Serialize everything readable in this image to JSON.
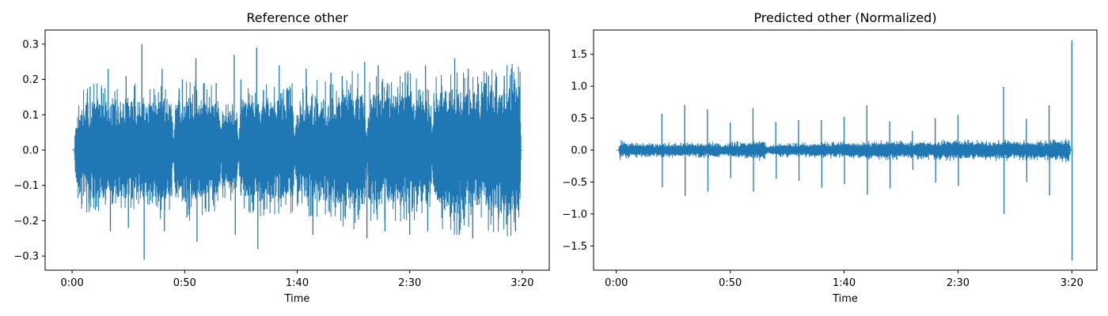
{
  "chart_data": [
    {
      "type": "line",
      "title": "Reference other",
      "xlabel": "Time",
      "ylabel": "",
      "x_unit": "seconds",
      "xlim": [
        -12,
        212
      ],
      "ylim": [
        -0.34,
        0.34
      ],
      "x_ticks": [
        {
          "value": 0,
          "label": "0:00"
        },
        {
          "value": 50,
          "label": "0:50"
        },
        {
          "value": 100,
          "label": "1:40"
        },
        {
          "value": 150,
          "label": "2:30"
        },
        {
          "value": 200,
          "label": "3:20"
        }
      ],
      "y_ticks": [
        {
          "value": 0.3,
          "label": "0.3"
        },
        {
          "value": 0.2,
          "label": "0.2"
        },
        {
          "value": 0.1,
          "label": "0.1"
        },
        {
          "value": 0.0,
          "label": "0.0"
        },
        {
          "value": -0.1,
          "label": "−0.1"
        },
        {
          "value": -0.2,
          "label": "−0.2"
        },
        {
          "value": -0.3,
          "label": "−0.3"
        }
      ],
      "duration": 200,
      "color": "#1f77b4",
      "envelope": {
        "time": [
          0,
          1,
          1.5,
          5,
          10,
          15,
          18,
          20,
          25,
          30,
          35,
          40,
          44,
          45,
          46,
          50,
          55,
          60,
          65,
          66,
          67,
          68,
          70,
          73,
          74,
          75,
          80,
          85,
          90,
          95,
          98,
          99,
          100,
          105,
          110,
          115,
          120,
          125,
          130,
          131,
          132,
          135,
          140,
          145,
          150,
          155,
          159,
          160,
          161,
          165,
          170,
          175,
          180,
          185,
          190,
          195,
          199,
          199.5,
          200
        ],
        "amp": [
          0.0,
          0.0,
          0.1,
          0.13,
          0.14,
          0.14,
          0.13,
          0.14,
          0.15,
          0.14,
          0.13,
          0.15,
          0.14,
          0.02,
          0.14,
          0.15,
          0.15,
          0.14,
          0.15,
          0.05,
          0.11,
          0.1,
          0.11,
          0.12,
          0.03,
          0.13,
          0.14,
          0.15,
          0.14,
          0.15,
          0.14,
          0.04,
          0.13,
          0.14,
          0.15,
          0.14,
          0.16,
          0.17,
          0.16,
          0.03,
          0.15,
          0.16,
          0.15,
          0.16,
          0.17,
          0.15,
          0.16,
          0.04,
          0.16,
          0.17,
          0.18,
          0.17,
          0.16,
          0.17,
          0.18,
          0.19,
          0.18,
          0.0,
          0.0
        ]
      },
      "spikes": [
        {
          "t": 8,
          "v": 0.18
        },
        {
          "t": 11,
          "v": -0.16
        },
        {
          "t": 16,
          "v": 0.23
        },
        {
          "t": 17,
          "v": -0.23
        },
        {
          "t": 24,
          "v": 0.21
        },
        {
          "t": 25,
          "v": -0.22
        },
        {
          "t": 31,
          "v": 0.3
        },
        {
          "t": 32,
          "v": -0.31
        },
        {
          "t": 40,
          "v": 0.23
        },
        {
          "t": 41,
          "v": -0.23
        },
        {
          "t": 49,
          "v": 0.2
        },
        {
          "t": 51,
          "v": -0.19
        },
        {
          "t": 55,
          "v": 0.26
        },
        {
          "t": 55.5,
          "v": -0.26
        },
        {
          "t": 64,
          "v": 0.19
        },
        {
          "t": 72,
          "v": 0.27
        },
        {
          "t": 72.5,
          "v": -0.24
        },
        {
          "t": 75,
          "v": 0.2
        },
        {
          "t": 82,
          "v": 0.29
        },
        {
          "t": 82.5,
          "v": -0.28
        },
        {
          "t": 92,
          "v": 0.24
        },
        {
          "t": 96,
          "v": 0.17
        },
        {
          "t": 104,
          "v": 0.23
        },
        {
          "t": 107,
          "v": -0.24
        },
        {
          "t": 115,
          "v": 0.22
        },
        {
          "t": 120,
          "v": 0.21
        },
        {
          "t": 130,
          "v": 0.25
        },
        {
          "t": 131,
          "v": -0.25
        },
        {
          "t": 136,
          "v": 0.24
        },
        {
          "t": 139,
          "v": -0.23
        },
        {
          "t": 148,
          "v": 0.22
        },
        {
          "t": 150,
          "v": -0.24
        },
        {
          "t": 157,
          "v": 0.24
        },
        {
          "t": 158,
          "v": -0.23
        },
        {
          "t": 170,
          "v": 0.26
        },
        {
          "t": 172,
          "v": -0.24
        },
        {
          "t": 176,
          "v": 0.23
        },
        {
          "t": 178,
          "v": -0.25
        },
        {
          "t": 185,
          "v": 0.21
        },
        {
          "t": 192,
          "v": 0.21
        },
        {
          "t": 193,
          "v": -0.21
        },
        {
          "t": 197,
          "v": -0.23
        }
      ]
    },
    {
      "type": "line",
      "title": "Predicted other (Normalized)",
      "xlabel": "Time",
      "ylabel": "",
      "x_unit": "seconds",
      "xlim": [
        -10,
        211
      ],
      "ylim": [
        -1.88,
        1.88
      ],
      "x_ticks": [
        {
          "value": 0,
          "label": "0:00"
        },
        {
          "value": 50,
          "label": "0:50"
        },
        {
          "value": 100,
          "label": "1:40"
        },
        {
          "value": 150,
          "label": "2:30"
        },
        {
          "value": 200,
          "label": "3:20"
        }
      ],
      "y_ticks": [
        {
          "value": 1.5,
          "label": "1.5"
        },
        {
          "value": 1.0,
          "label": "1.0"
        },
        {
          "value": 0.5,
          "label": "0.5"
        },
        {
          "value": 0.0,
          "label": "0.0"
        },
        {
          "value": -0.5,
          "label": "−0.5"
        },
        {
          "value": -1.0,
          "label": "−1.0"
        },
        {
          "value": -1.5,
          "label": "−1.5"
        }
      ],
      "duration": 200,
      "color": "#1f77b4",
      "envelope": {
        "time": [
          0,
          1,
          1.5,
          5,
          10,
          20,
          30,
          40,
          45,
          46,
          50,
          60,
          65,
          66,
          70,
          75,
          80,
          90,
          100,
          110,
          120,
          130,
          140,
          150,
          160,
          170,
          180,
          190,
          195,
          199,
          199.5,
          200
        ],
        "amp": [
          0.0,
          0.0,
          0.12,
          0.1,
          0.09,
          0.09,
          0.09,
          0.1,
          0.11,
          0.07,
          0.1,
          0.12,
          0.14,
          0.05,
          0.08,
          0.09,
          0.09,
          0.1,
          0.1,
          0.11,
          0.12,
          0.11,
          0.12,
          0.13,
          0.12,
          0.13,
          0.12,
          0.12,
          0.14,
          0.15,
          0.0,
          0.0
        ]
      },
      "spikes": [
        {
          "t": 20,
          "v": 0.57
        },
        {
          "t": 20.2,
          "v": -0.58
        },
        {
          "t": 30,
          "v": 0.71
        },
        {
          "t": 30.2,
          "v": -0.72
        },
        {
          "t": 40,
          "v": 0.64
        },
        {
          "t": 40.2,
          "v": -0.65
        },
        {
          "t": 50,
          "v": 0.43
        },
        {
          "t": 50.2,
          "v": -0.44
        },
        {
          "t": 60,
          "v": 0.66
        },
        {
          "t": 60.2,
          "v": -0.65
        },
        {
          "t": 70,
          "v": 0.44
        },
        {
          "t": 70.2,
          "v": -0.45
        },
        {
          "t": 80,
          "v": 0.47
        },
        {
          "t": 80.2,
          "v": -0.48
        },
        {
          "t": 90,
          "v": 0.47
        },
        {
          "t": 90.2,
          "v": -0.59
        },
        {
          "t": 100,
          "v": 0.52
        },
        {
          "t": 100.2,
          "v": -0.53
        },
        {
          "t": 110,
          "v": 0.7
        },
        {
          "t": 110.2,
          "v": -0.7
        },
        {
          "t": 120,
          "v": 0.45
        },
        {
          "t": 120.2,
          "v": -0.6
        },
        {
          "t": 130,
          "v": 0.3
        },
        {
          "t": 130.2,
          "v": -0.31
        },
        {
          "t": 140,
          "v": 0.5
        },
        {
          "t": 140.2,
          "v": -0.51
        },
        {
          "t": 150,
          "v": 0.55
        },
        {
          "t": 150.2,
          "v": -0.56
        },
        {
          "t": 170,
          "v": 0.99
        },
        {
          "t": 170.2,
          "v": -1.0
        },
        {
          "t": 180,
          "v": 0.49
        },
        {
          "t": 180.2,
          "v": -0.5
        },
        {
          "t": 190,
          "v": 0.7
        },
        {
          "t": 190.2,
          "v": -0.71
        },
        {
          "t": 200,
          "v": 1.72
        },
        {
          "t": 200.1,
          "v": -1.73
        }
      ]
    }
  ]
}
